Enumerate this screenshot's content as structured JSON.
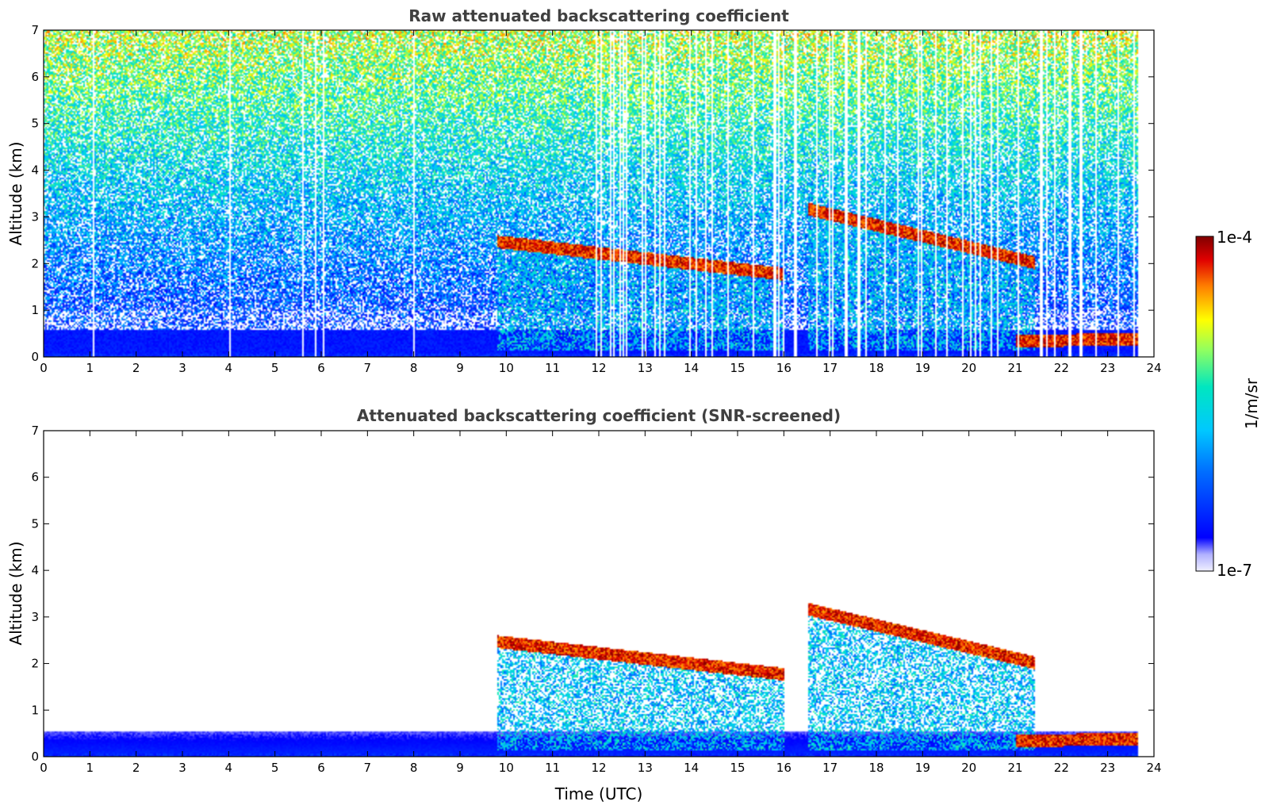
{
  "chart_data": [
    {
      "type": "heatmap",
      "title": "Raw attenuated backscattering coefficient",
      "xlabel": "",
      "ylabel": "Altitude (km)",
      "xlim": [
        0,
        24
      ],
      "ylim": [
        0,
        7
      ],
      "xticks": [
        0,
        1,
        2,
        3,
        4,
        5,
        6,
        7,
        8,
        9,
        10,
        11,
        12,
        13,
        14,
        15,
        16,
        17,
        18,
        19,
        20,
        21,
        22,
        23,
        24
      ],
      "yticks": [
        0,
        1,
        2,
        3,
        4,
        5,
        6,
        7
      ],
      "data_end_hour": 23.65,
      "features": {
        "background_noise_increases_with_altitude": true,
        "surface_layer_top_km": 0.6,
        "gap_columns_after_hour": 11.5,
        "cloud_layers": [
          {
            "start": 9.8,
            "end": 16.0,
            "base_start_km": 2.4,
            "base_end_km": 1.7
          },
          {
            "start": 16.5,
            "end": 21.4,
            "base_start_km": 3.1,
            "base_end_km": 1.95
          },
          {
            "start": 21.0,
            "end": 23.65,
            "base_start_km": 0.28,
            "base_end_km": 0.3
          }
        ]
      }
    },
    {
      "type": "heatmap",
      "title": "Attenuated backscattering coefficient (SNR-screened)",
      "xlabel": "Time (UTC)",
      "ylabel": "Altitude (km)",
      "xlim": [
        0,
        24
      ],
      "ylim": [
        0,
        7
      ],
      "xticks": [
        0,
        1,
        2,
        3,
        4,
        5,
        6,
        7,
        8,
        9,
        10,
        11,
        12,
        13,
        14,
        15,
        16,
        17,
        18,
        19,
        20,
        21,
        22,
        23,
        24
      ],
      "yticks": [
        0,
        1,
        2,
        3,
        4,
        5,
        6,
        7
      ],
      "data_end_hour": 23.65,
      "features": {
        "noise_screened": true,
        "surface_layer_top_km": 0.55,
        "cloud_layers": [
          {
            "start": 9.8,
            "end": 16.0,
            "base_start_km": 2.4,
            "base_end_km": 1.7
          },
          {
            "start": 16.5,
            "end": 21.4,
            "base_start_km": 3.1,
            "base_end_km": 1.95
          },
          {
            "start": 21.0,
            "end": 23.65,
            "base_start_km": 0.28,
            "base_end_km": 0.3
          }
        ]
      }
    }
  ],
  "colorbar": {
    "max_label": "1e-4",
    "min_label": "1e-7",
    "unit_label": "1/m/sr",
    "colormap": [
      "#f0f0ff",
      "#a8a8ff",
      "#0000ff",
      "#0090ff",
      "#00e0e0",
      "#80ff80",
      "#ffff00",
      "#ff8000",
      "#e00000",
      "#800000"
    ]
  }
}
